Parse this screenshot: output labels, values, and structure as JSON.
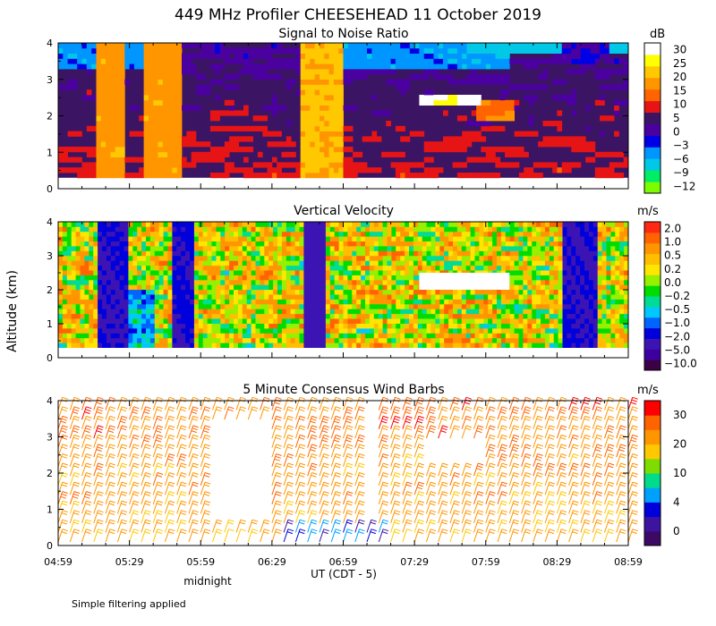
{
  "title": "449 MHz Profiler CHEESEHEAD 11 October 2019",
  "y_axis_label": "Altitude (km)",
  "x_axis_label": "UT  (CDT - 5)",
  "midnight_label": "midnight",
  "footnote": "Simple filtering applied",
  "x_ticks": [
    "04:59",
    "05:29",
    "05:59",
    "06:29",
    "06:59",
    "07:29",
    "07:59",
    "08:29",
    "08:59"
  ],
  "colors": {
    "snr": [
      "#7cfc00",
      "#00ee66",
      "#00c8e6",
      "#0096ff",
      "#0000e6",
      "#4b00a0",
      "#3c1464",
      "#e61414",
      "#ff6400",
      "#ff9600",
      "#ffc800",
      "#ffff00",
      "#ffffff"
    ],
    "vv": [
      "#3c0046",
      "#3c00a0",
      "#3c14b4",
      "#0000dc",
      "#0064ff",
      "#00c8ff",
      "#00dc96",
      "#00dc00",
      "#96f000",
      "#ffe600",
      "#ffbe00",
      "#ff9600",
      "#ff6400",
      "#ff2814"
    ],
    "wind": [
      "#3c0a64",
      "#3c14a0",
      "#0000dc",
      "#00a0ff",
      "#00dc8c",
      "#7ddc00",
      "#ffc800",
      "#ff9600",
      "#ff6400",
      "#ff0000"
    ]
  },
  "chart_data": [
    {
      "type": "heatmap",
      "title": "Signal to Noise Ratio",
      "x_range": [
        "04:59",
        "08:59"
      ],
      "ylim": [
        0,
        4
      ],
      "yticks": [
        "0",
        "1",
        "2",
        "3",
        "4"
      ],
      "colorbar_unit": "dB",
      "colorbar_labels": [
        "30",
        "25",
        "20",
        "15",
        "10",
        "5",
        "0",
        "−3",
        "−6",
        "−9",
        "−12"
      ],
      "features": [
        {
          "x": [
            "05:15",
            "05:25"
          ],
          "y": [
            0.3,
            4.0
          ],
          "value_db": 15
        },
        {
          "x": [
            "05:35",
            "05:50"
          ],
          "y": [
            0.3,
            4.0
          ],
          "value_db": 15
        },
        {
          "x": [
            "06:40",
            "06:57"
          ],
          "y": [
            0.3,
            4.0
          ],
          "value_db": 18
        },
        {
          "x": [
            "07:55",
            "08:10"
          ],
          "y": [
            1.8,
            2.4
          ],
          "value_db": 12
        },
        {
          "x": [
            "07:30",
            "07:55"
          ],
          "y": [
            2.2,
            2.5
          ],
          "value_db": 28
        },
        {
          "x": [
            "08:30",
            "08:50"
          ],
          "y": [
            3.3,
            4.0
          ],
          "value_db": 0
        }
      ]
    },
    {
      "type": "heatmap",
      "title": "Vertical Velocity",
      "x_range": [
        "04:59",
        "08:59"
      ],
      "ylim": [
        0,
        4
      ],
      "yticks": [
        "0",
        "1",
        "2",
        "3",
        "4"
      ],
      "colorbar_unit": "m/s",
      "colorbar_labels": [
        "2.0",
        "1.0",
        "0.5",
        "0.2",
        "0.0",
        "−0.2",
        "−0.5",
        "−1.0",
        "−2.0",
        "−5.0",
        "−10.0"
      ],
      "features": [
        {
          "x": [
            "05:15",
            "05:27"
          ],
          "y": [
            0.3,
            4.0
          ],
          "value_ms": -3
        },
        {
          "x": [
            "05:47",
            "05:55"
          ],
          "y": [
            0.3,
            4.0
          ],
          "value_ms": -3
        },
        {
          "x": [
            "06:42",
            "06:50"
          ],
          "y": [
            0.3,
            4.0
          ],
          "value_ms": -4
        },
        {
          "x": [
            "08:30",
            "08:45"
          ],
          "y": [
            0.3,
            4.0
          ],
          "value_ms": -3
        }
      ]
    },
    {
      "type": "scatter",
      "title": "5 Minute Consensus Wind Barbs",
      "x_range": [
        "04:59",
        "08:59"
      ],
      "ylim": [
        0,
        4
      ],
      "yticks": [
        "0",
        "1",
        "2",
        "3",
        "4"
      ],
      "colorbar_unit": "m/s",
      "colorbar_labels": [
        "30",
        "20",
        "10",
        "4",
        "0"
      ],
      "typical_speed_ms": 20,
      "typical_direction": "southwesterly"
    }
  ]
}
